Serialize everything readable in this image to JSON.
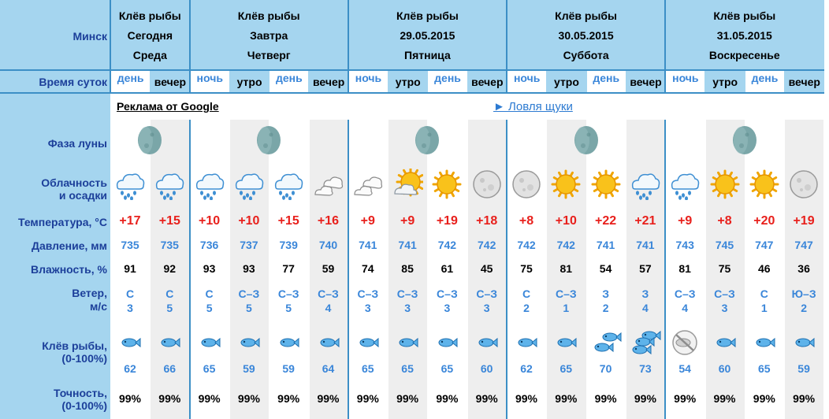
{
  "location": "Минск",
  "time_of_day_label": "Время суток",
  "days": [
    {
      "title": "Клёв рыбы",
      "date": "Сегодня",
      "weekday": "Среда",
      "slots": [
        "день",
        "вечер"
      ]
    },
    {
      "title": "Клёв рыбы",
      "date": "Завтра",
      "weekday": "Четверг",
      "slots": [
        "ночь",
        "утро",
        "день",
        "вечер"
      ]
    },
    {
      "title": "Клёв рыбы",
      "date": "29.05.2015",
      "weekday": "Пятница",
      "slots": [
        "ночь",
        "утро",
        "день",
        "вечер"
      ]
    },
    {
      "title": "Клёв рыбы",
      "date": "30.05.2015",
      "weekday": "Суббота",
      "slots": [
        "ночь",
        "утро",
        "день",
        "вечер"
      ]
    },
    {
      "title": "Клёв рыбы",
      "date": "31.05.2015",
      "weekday": "Воскресенье",
      "slots": [
        "ночь",
        "утро",
        "день",
        "вечер"
      ]
    }
  ],
  "ad": {
    "label": "Реклама от Google",
    "link": "► Ловля щуки"
  },
  "labels": {
    "moon": "Фаза луны",
    "clouds_1": "Облачность",
    "clouds_2": "и осадки",
    "temperature": "Температура, °С",
    "pressure": "Давление, мм",
    "humidity": "Влажность, %",
    "wind_1": "Ветер,",
    "wind_2": "м/с",
    "bite_1": "Клёв рыбы,",
    "bite_2": "(0-100%)",
    "accuracy_1": "Точность,",
    "accuracy_2": "(0-100%)"
  },
  "columns": [
    {
      "slot": "день",
      "sky": "rain",
      "temp": "+17",
      "pressure": "735",
      "humidity": "91",
      "wind_dir": "С",
      "wind_speed": "3",
      "fish": 1,
      "bite": "62",
      "accuracy": "99%"
    },
    {
      "slot": "вечер",
      "sky": "rain",
      "temp": "+15",
      "pressure": "735",
      "humidity": "92",
      "wind_dir": "С",
      "wind_speed": "5",
      "fish": 1,
      "bite": "66",
      "accuracy": "99%"
    },
    {
      "slot": "ночь",
      "sky": "rain",
      "temp": "+10",
      "pressure": "736",
      "humidity": "93",
      "wind_dir": "С",
      "wind_speed": "5",
      "fish": 1,
      "bite": "65",
      "accuracy": "99%"
    },
    {
      "slot": "утро",
      "sky": "rain",
      "temp": "+10",
      "pressure": "737",
      "humidity": "93",
      "wind_dir": "С–З",
      "wind_speed": "5",
      "fish": 1,
      "bite": "59",
      "accuracy": "99%"
    },
    {
      "slot": "день",
      "sky": "rain",
      "temp": "+15",
      "pressure": "739",
      "humidity": "77",
      "wind_dir": "С–З",
      "wind_speed": "5",
      "fish": 1,
      "bite": "59",
      "accuracy": "99%"
    },
    {
      "slot": "вечер",
      "sky": "cloudy",
      "temp": "+16",
      "pressure": "740",
      "humidity": "59",
      "wind_dir": "С–З",
      "wind_speed": "4",
      "fish": 1,
      "bite": "64",
      "accuracy": "99%"
    },
    {
      "slot": "ночь",
      "sky": "cloudy",
      "temp": "+9",
      "pressure": "741",
      "humidity": "74",
      "wind_dir": "С–З",
      "wind_speed": "3",
      "fish": 1,
      "bite": "65",
      "accuracy": "99%"
    },
    {
      "slot": "утро",
      "sky": "partly",
      "temp": "+9",
      "pressure": "741",
      "humidity": "85",
      "wind_dir": "С–З",
      "wind_speed": "3",
      "fish": 1,
      "bite": "65",
      "accuracy": "99%"
    },
    {
      "slot": "день",
      "sky": "sun",
      "temp": "+19",
      "pressure": "742",
      "humidity": "61",
      "wind_dir": "С–З",
      "wind_speed": "3",
      "fish": 1,
      "bite": "65",
      "accuracy": "99%"
    },
    {
      "slot": "вечер",
      "sky": "moon",
      "temp": "+18",
      "pressure": "742",
      "humidity": "45",
      "wind_dir": "С–З",
      "wind_speed": "3",
      "fish": 1,
      "bite": "60",
      "accuracy": "99%"
    },
    {
      "slot": "ночь",
      "sky": "moon",
      "temp": "+8",
      "pressure": "742",
      "humidity": "75",
      "wind_dir": "С",
      "wind_speed": "2",
      "fish": 1,
      "bite": "62",
      "accuracy": "99%"
    },
    {
      "slot": "утро",
      "sky": "sun",
      "temp": "+10",
      "pressure": "742",
      "humidity": "81",
      "wind_dir": "С–З",
      "wind_speed": "1",
      "fish": 1,
      "bite": "65",
      "accuracy": "99%"
    },
    {
      "slot": "день",
      "sky": "sun",
      "temp": "+22",
      "pressure": "741",
      "humidity": "54",
      "wind_dir": "З",
      "wind_speed": "2",
      "fish": 2,
      "bite": "70",
      "accuracy": "99%"
    },
    {
      "slot": "вечер",
      "sky": "rain",
      "temp": "+21",
      "pressure": "741",
      "humidity": "57",
      "wind_dir": "З",
      "wind_speed": "4",
      "fish": 3,
      "bite": "73",
      "accuracy": "99%"
    },
    {
      "slot": "ночь",
      "sky": "rain",
      "temp": "+9",
      "pressure": "743",
      "humidity": "81",
      "wind_dir": "С–З",
      "wind_speed": "4",
      "fish": 0,
      "bite": "54",
      "accuracy": "99%"
    },
    {
      "slot": "утро",
      "sky": "sun",
      "temp": "+8",
      "pressure": "745",
      "humidity": "75",
      "wind_dir": "С–З",
      "wind_speed": "3",
      "fish": 1,
      "bite": "60",
      "accuracy": "99%"
    },
    {
      "slot": "день",
      "sky": "sun",
      "temp": "+20",
      "pressure": "747",
      "humidity": "46",
      "wind_dir": "С",
      "wind_speed": "1",
      "fish": 1,
      "bite": "65",
      "accuracy": "99%"
    },
    {
      "slot": "вечер",
      "sky": "moon",
      "temp": "+19",
      "pressure": "747",
      "humidity": "36",
      "wind_dir": "Ю–З",
      "wind_speed": "2",
      "fish": 1,
      "bite": "59",
      "accuracy": "99%"
    }
  ],
  "moon_phases": [
    "waning-gibbous",
    "waning-gibbous",
    "waning-gibbous",
    "waning-gibbous",
    "waning-gibbous"
  ],
  "colors": {
    "header_bg": "#a5d5ef",
    "separator": "#3c8fc6",
    "label": "#1c3f9a",
    "temperature": "#e8201c",
    "value_blue": "#3a86d9",
    "shade": "#eeeeee"
  }
}
